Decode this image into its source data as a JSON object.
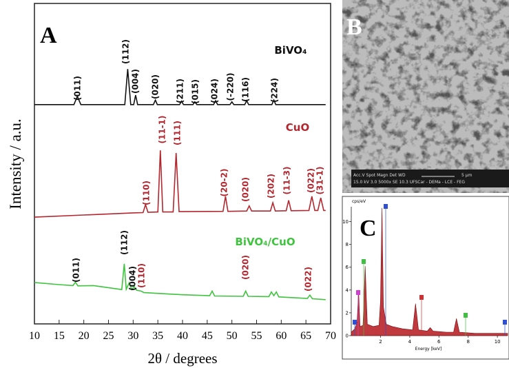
{
  "chart_data": [
    {
      "type": "line",
      "panel": "A",
      "xlabel": "2θ / degrees",
      "ylabel": "Intensity / a.u.",
      "xlim": [
        10,
        70
      ],
      "xticks": [
        10,
        15,
        20,
        25,
        30,
        35,
        40,
        45,
        50,
        55,
        60,
        65,
        70
      ],
      "ylim": [
        0,
        104.5
      ],
      "series": [
        {
          "name": "BiVO₄",
          "color": "#111111",
          "x": [
            10,
            18,
            18.7,
            19.4,
            28.3,
            28.9,
            29.5,
            30.1,
            30.5,
            30.9,
            34.1,
            34.5,
            34.9,
            39.4,
            39.8,
            40.2,
            42.1,
            42.5,
            42.9,
            46.3,
            46.7,
            47.1,
            49.6,
            50,
            50.4,
            52.6,
            53,
            53.4,
            58.1,
            58.5,
            58.9,
            69
          ],
          "values": [
            71.5,
            71.5,
            74.2,
            71.5,
            71.5,
            83.1,
            71.5,
            71.5,
            74.6,
            71.5,
            71.5,
            73,
            71.5,
            71.5,
            72.6,
            71.5,
            71.5,
            72.4,
            71.5,
            71.5,
            72.8,
            71.5,
            71.5,
            72.4,
            71.5,
            71.5,
            72.8,
            71.5,
            71.5,
            73,
            71.5,
            71.5
          ],
          "annotations": [
            {
              "text": "(011)",
              "color": "#111111"
            },
            {
              "text": "(112)",
              "color": "#111111"
            },
            {
              "text": "(004)",
              "color": "#111111"
            },
            {
              "text": "(020)",
              "color": "#111111"
            },
            {
              "text": "(211)",
              "color": "#111111"
            },
            {
              "text": "(015)",
              "color": "#111111"
            },
            {
              "text": "(024)",
              "color": "#111111"
            },
            {
              "text": "(-220)",
              "color": "#111111"
            },
            {
              "text": "(116)",
              "color": "#111111"
            },
            {
              "text": "(224)",
              "color": "#111111"
            }
          ]
        },
        {
          "name": "CuO",
          "color": "#b3262e",
          "x": [
            10,
            20,
            30,
            32,
            32.5,
            33,
            35,
            35.5,
            36,
            38.1,
            38.7,
            39.3,
            48.2,
            48.7,
            49.2,
            53,
            53.5,
            54,
            57.8,
            58.3,
            58.8,
            61,
            61.5,
            62,
            65.6,
            66.2,
            66.8,
            67.4,
            68,
            68.6,
            69
          ],
          "values": [
            34.8,
            35.5,
            36.2,
            36.3,
            38.9,
            36.4,
            36.5,
            56.6,
            36.5,
            36.5,
            55.7,
            36.6,
            36.7,
            41.6,
            36.7,
            36.8,
            38.5,
            36.8,
            36.8,
            39.5,
            36.8,
            36.9,
            40.3,
            36.9,
            37,
            41.6,
            37,
            37,
            41.1,
            37,
            37
          ],
          "annotations": [
            {
              "text": "(110)",
              "color": "#b3262e"
            },
            {
              "text": "(11-1)",
              "color": "#b3262e"
            },
            {
              "text": "(111)",
              "color": "#b3262e"
            },
            {
              "text": "(20-2)",
              "color": "#b3262e"
            },
            {
              "text": "(020)",
              "color": "#b3262e"
            },
            {
              "text": "(202)",
              "color": "#b3262e"
            },
            {
              "text": "(11-3)",
              "color": "#b3262e"
            },
            {
              "text": "(022)",
              "color": "#b3262e"
            },
            {
              "text": "(31-1)",
              "color": "#b3262e"
            }
          ]
        },
        {
          "name": "BiVO₄/CuO",
          "color": "#3ec43e",
          "x": [
            10,
            15,
            17.8,
            18.3,
            18.8,
            22,
            27.7,
            28.2,
            28.6,
            29.2,
            29.7,
            30.2,
            30.7,
            31.6,
            32.2,
            40,
            45.5,
            46,
            46.5,
            52.3,
            52.8,
            53.3,
            57.5,
            58,
            58.5,
            59,
            59.5,
            65.3,
            65.8,
            66.3,
            69
          ],
          "values": [
            13.5,
            12.8,
            12.5,
            13.6,
            12.4,
            12.5,
            11.2,
            19.6,
            11.3,
            13.4,
            11.2,
            12.2,
            11,
            10.7,
            10.2,
            9.5,
            9.2,
            10.7,
            9.1,
            9,
            10.7,
            9,
            8.9,
            10.4,
            9.2,
            10.4,
            8.8,
            8.3,
            9.4,
            8.2,
            7.9
          ],
          "annotations": [
            {
              "text": "(011)",
              "color": "#111111"
            },
            {
              "text": "(112)",
              "color": "#111111"
            },
            {
              "text": "(004)",
              "color": "#111111"
            },
            {
              "text": "(110)",
              "color": "#b3262e"
            },
            {
              "text": "(020)",
              "color": "#b3262e"
            },
            {
              "text": "(022)",
              "color": "#b3262e"
            }
          ]
        }
      ]
    },
    {
      "type": "area",
      "panel": "C",
      "ylabel": "cps/eV",
      "xlabel": "Energy [keV]",
      "color": "#b5161c",
      "xlim": [
        0,
        10.7
      ],
      "xticks": [
        2,
        4,
        6,
        8,
        10
      ],
      "ylim": [
        0,
        11.3
      ],
      "yticks": [
        0,
        2,
        4,
        6,
        8,
        10
      ],
      "x": [
        0,
        0.25,
        0.4,
        0.5,
        0.6,
        0.8,
        0.95,
        1.1,
        1.5,
        1.9,
        2.0,
        2.1,
        2.2,
        2.4,
        2.8,
        3.5,
        4.2,
        4.4,
        4.6,
        5.2,
        5.4,
        5.6,
        6.5,
        7.0,
        7.2,
        7.4,
        8.5,
        10.7
      ],
      "values": [
        0.3,
        0.6,
        1.2,
        4.0,
        0.8,
        0.9,
        6.1,
        1.0,
        0.8,
        0.9,
        3,
        11.2,
        2.5,
        1.0,
        0.8,
        0.6,
        0.5,
        2.8,
        0.5,
        0.4,
        0.7,
        0.4,
        0.3,
        0.3,
        1.5,
        0.3,
        0.2,
        0.2
      ]
    }
  ],
  "image_b": {
    "panel": "B",
    "info_header": "Acc.V  Spot Magn   Det  WD",
    "scale": "5 μm",
    "info_line": "15.0 kV 3.0  5000x    SE   10.3  UFSCar - DEMa - LCE - FEG"
  }
}
